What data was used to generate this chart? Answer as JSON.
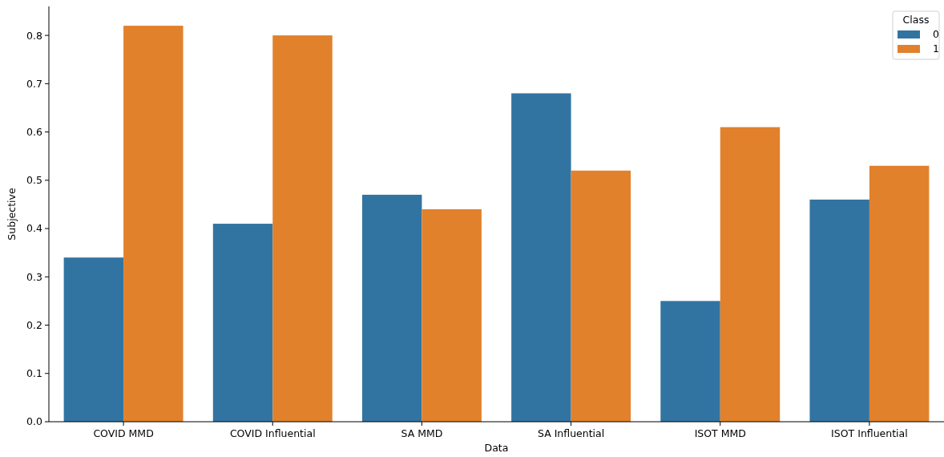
{
  "chart_data": {
    "type": "bar",
    "xlabel": "Data",
    "ylabel": "Subjective",
    "legend_title": "Class",
    "legend": "top right",
    "grid": false,
    "categories": [
      "COVID MMD",
      "COVID Influential",
      "SA MMD",
      "SA Influential",
      "ISOT MMD",
      "ISOT Influential"
    ],
    "series": [
      {
        "name": "0",
        "color": "#3274a1",
        "values": [
          0.34,
          0.41,
          0.47,
          0.68,
          0.25,
          0.46
        ]
      },
      {
        "name": "1",
        "color": "#e1812c",
        "values": [
          0.82,
          0.8,
          0.44,
          0.52,
          0.61,
          0.53
        ]
      }
    ],
    "ylim": [
      0,
      0.86
    ],
    "yticks": [
      {
        "value": 0,
        "label": "0.0"
      },
      {
        "value": 0.1,
        "label": "0.1"
      },
      {
        "value": 0.2,
        "label": "0.2"
      },
      {
        "value": 0.3,
        "label": "0.3"
      },
      {
        "value": 0.4,
        "label": "0.4"
      },
      {
        "value": 0.5,
        "label": "0.5"
      },
      {
        "value": 0.6,
        "label": "0.6"
      },
      {
        "value": 0.7,
        "label": "0.7"
      },
      {
        "value": 0.8,
        "label": "0.8"
      }
    ]
  }
}
